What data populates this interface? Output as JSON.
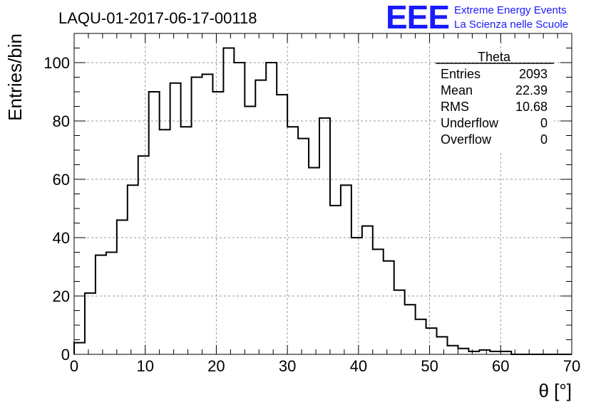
{
  "header": {
    "run_title": "LAQU-01-2017-06-17-00118",
    "logo_text": "EEE",
    "logo_line1": "Extreme Energy Events",
    "logo_line2": "La Scienza nelle Scuole"
  },
  "stats": {
    "name": "Theta",
    "rows": [
      {
        "label": "Entries",
        "value": "2093"
      },
      {
        "label": "Mean",
        "value": "22.39"
      },
      {
        "label": "RMS",
        "value": "10.68"
      },
      {
        "label": "Underflow",
        "value": "0"
      },
      {
        "label": "Overflow",
        "value": "0"
      }
    ]
  },
  "chart_data": {
    "type": "histogram",
    "title": "LAQU-01-2017-06-17-00118",
    "xlabel": "θ [°]",
    "ylabel": "Entries/bin",
    "xlim": [
      0,
      70
    ],
    "ylim": [
      0,
      110
    ],
    "bin_width": 1.5,
    "x_ticks": [
      0,
      10,
      20,
      30,
      40,
      50,
      60,
      70
    ],
    "y_ticks": [
      0,
      20,
      40,
      60,
      80,
      100
    ],
    "grid": true,
    "values": [
      4,
      21,
      34,
      35,
      46,
      58,
      68,
      90,
      77,
      93,
      78,
      95,
      96,
      90,
      105,
      100,
      85,
      94,
      100,
      89,
      78,
      74,
      64,
      81,
      51,
      58,
      40,
      44,
      36,
      32,
      22,
      17,
      12,
      9,
      6,
      3,
      2,
      1,
      1.5,
      1,
      1,
      0,
      0,
      0,
      0,
      0,
      0
    ]
  },
  "colors": {
    "line": "#000000",
    "grid": "#9a9a9a",
    "logo": "#1a1aff"
  }
}
